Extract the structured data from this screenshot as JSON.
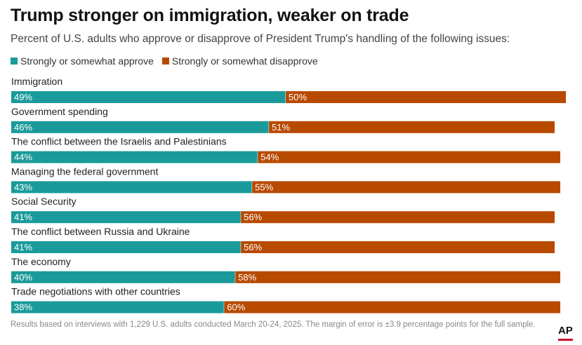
{
  "header": {
    "title": "Trump stronger on immigration, weaker on trade",
    "subtitle": "Percent of U.S. adults who approve or disapprove of President Trump's handling of the following issues:"
  },
  "footer": {
    "note": "Results based on interviews with 1,229 U.S. adults conducted March 20-24, 2025. The margin of error is ±3.9 percentage points for the full sample.",
    "logo": "AP"
  },
  "chart_data": {
    "type": "bar",
    "orientation": "horizontal",
    "stacked": true,
    "title": "Trump stronger on immigration, weaker on trade",
    "subtitle": "Percent of U.S. adults who approve or disapprove of President Trump's handling of the following issues:",
    "categories": [
      "Immigration",
      "Government spending",
      "The conflict between the Israelis and Palestinians",
      "Managing the federal government",
      "Social Security",
      "The conflict between Russia and Ukraine",
      "The economy",
      "Trade negotiations with other countries"
    ],
    "series": [
      {
        "name": "Strongly or somewhat approve",
        "color": "#1a9a9a",
        "values": [
          49,
          46,
          44,
          43,
          41,
          41,
          40,
          38
        ]
      },
      {
        "name": "Strongly or somewhat disapprove",
        "color": "#b84a00",
        "values": [
          50,
          51,
          54,
          55,
          56,
          56,
          58,
          60
        ]
      }
    ],
    "value_suffix": "%",
    "xlim": [
      0,
      100
    ],
    "legend_position": "top-left",
    "grid": false
  }
}
